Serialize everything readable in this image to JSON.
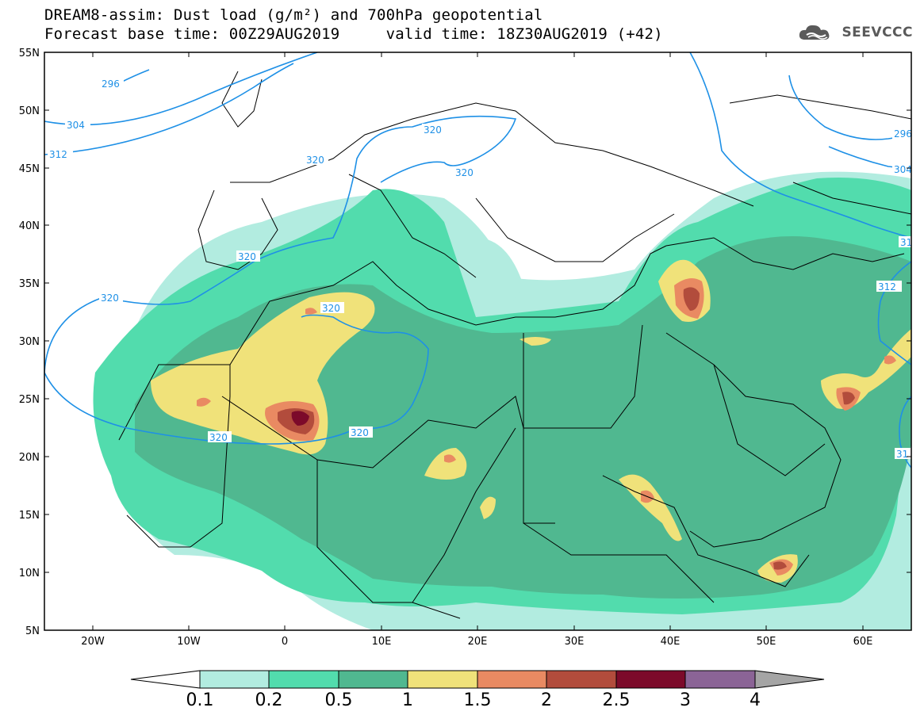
{
  "header": {
    "title_line1": "DREAM8-assim: Dust load (g/m²) and 700hPa geopotential",
    "title_line2": "Forecast base time: 00Z29AUG2019     valid time: 18Z30AUG2019 (+42)",
    "logo_text": "SEEVCCC"
  },
  "axes": {
    "lat_labels": [
      "55N",
      "50N",
      "45N",
      "40N",
      "35N",
      "30N",
      "25N",
      "20N",
      "15N",
      "10N",
      "5N"
    ],
    "lon_labels": [
      "20W",
      "10W",
      "0",
      "10E",
      "20E",
      "30E",
      "40E",
      "50E",
      "60E"
    ]
  },
  "contours": {
    "labels": [
      "296",
      "304",
      "312",
      "320",
      "320",
      "320",
      "320",
      "320",
      "320",
      "320",
      "320",
      "296",
      "304",
      "31",
      "312",
      "31"
    ]
  },
  "colorbar": {
    "labels": [
      "0.1",
      "0.2",
      "0.5",
      "1",
      "1.5",
      "2",
      "2.5",
      "3",
      "4"
    ],
    "colors": [
      "#b2ece0",
      "#52dcad",
      "#50b890",
      "#f0e27a",
      "#e98a62",
      "#b24c3c",
      "#7c0a2a",
      "#8b6496",
      "#a5a5a5"
    ]
  },
  "colors": {
    "contour": "#1e90e6",
    "border": "#000000",
    "background": "#ffffff"
  }
}
